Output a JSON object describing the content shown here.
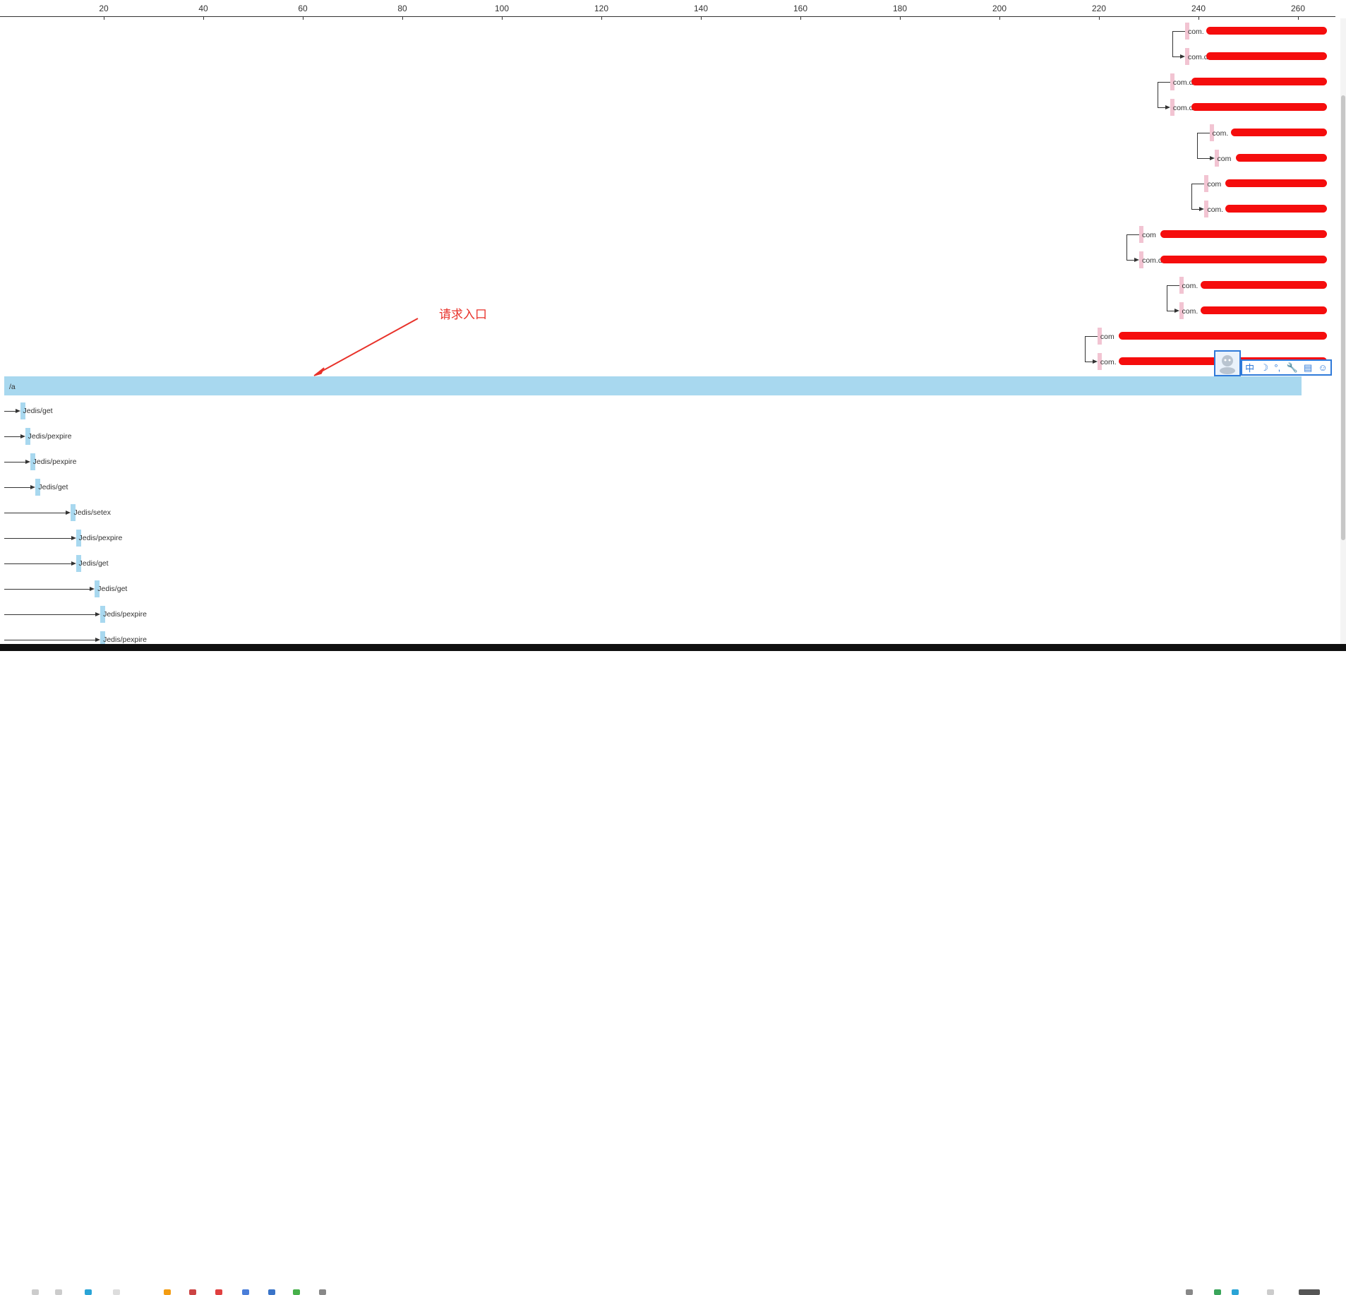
{
  "axis": {
    "ticks": [
      "20",
      "40",
      "60",
      "80",
      "100",
      "120",
      "140",
      "160",
      "180",
      "200",
      "220",
      "240",
      "260"
    ]
  },
  "root_span": {
    "label": "/a"
  },
  "annotation": {
    "text": "请求入口"
  },
  "spans": [
    {
      "label": "Jedis/get",
      "start": 3.2
    },
    {
      "label": "Jedis/pexpire",
      "start": 4.2
    },
    {
      "label": "Jedis/pexpire",
      "start": 5.2
    },
    {
      "label": "Jedis/get",
      "start": 6.3
    },
    {
      "label": "Jedis/setex",
      "start": 13.4
    },
    {
      "label": "Jedis/pexpire",
      "start": 14.4
    },
    {
      "label": "Jedis/get",
      "start": 14.4
    },
    {
      "label": "Jedis/get",
      "start": 18.2
    },
    {
      "label": "Jedis/pexpire",
      "start": 19.3
    },
    {
      "label": "Jedis/pexpire",
      "start": 19.3
    }
  ],
  "db_spans": [
    {
      "label": "com.",
      "start": 237.3,
      "redacted": true
    },
    {
      "label": "com.d",
      "start": 237.3,
      "redacted": true
    },
    {
      "label": "com.d",
      "start": 234.3,
      "redacted": true
    },
    {
      "label": "com.d",
      "start": 234.3,
      "redacted": true
    },
    {
      "label": "com.",
      "start": 242.2,
      "redacted": true
    },
    {
      "label": "com",
      "start": 243.2,
      "redacted": true
    },
    {
      "label": "com",
      "start": 241.2,
      "redacted": true
    },
    {
      "label": "com.",
      "start": 241.2,
      "redacted": true
    },
    {
      "label": "com",
      "start": 228.1,
      "redacted": true
    },
    {
      "label": "com.d",
      "start": 228.1,
      "redacted": true
    },
    {
      "label": "com.",
      "start": 236.1,
      "redacted": true
    },
    {
      "label": "com.",
      "start": 236.1,
      "redacted": true
    },
    {
      "label": "com",
      "start": 219.7,
      "redacted": true
    },
    {
      "label": "com.",
      "start": 219.7,
      "redacted": true
    }
  ],
  "ime_toolbar": {
    "items": [
      "中",
      "☽",
      "°,",
      "🔧",
      "▤",
      "☺"
    ]
  },
  "colors": {
    "redis_bar": "#a8d8ef",
    "db_bar": "#f2c4d2",
    "root_bar": "#a8d8ef",
    "annotation": "#e8322a",
    "redaction": "#f50d0d"
  }
}
